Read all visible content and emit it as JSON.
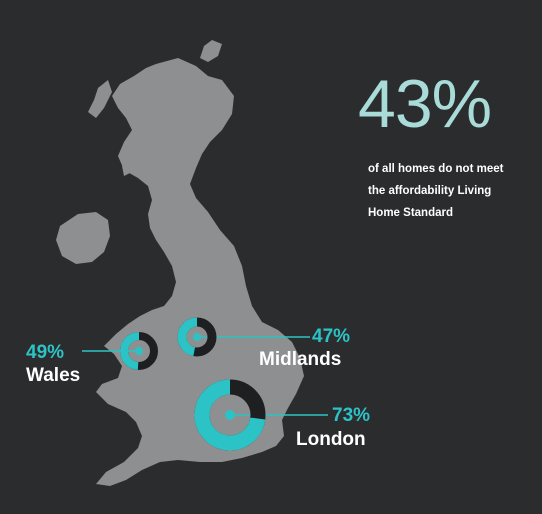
{
  "headline": {
    "value": "43%",
    "text": "of all homes do not meet the affordability Living Home Standard"
  },
  "regions": [
    {
      "name": "Wales",
      "percent_label": "49%",
      "percent": 49
    },
    {
      "name": "Midlands",
      "percent_label": "47%",
      "percent": 47
    },
    {
      "name": "London",
      "percent_label": "73%",
      "percent": 73
    }
  ],
  "colors": {
    "background": "#2b2c2e",
    "land": "#8e8f91",
    "accent": "#2cc3c6",
    "headline": "#a9dbd9",
    "donut_track": "#1e1f21",
    "text": "#ffffff"
  }
}
